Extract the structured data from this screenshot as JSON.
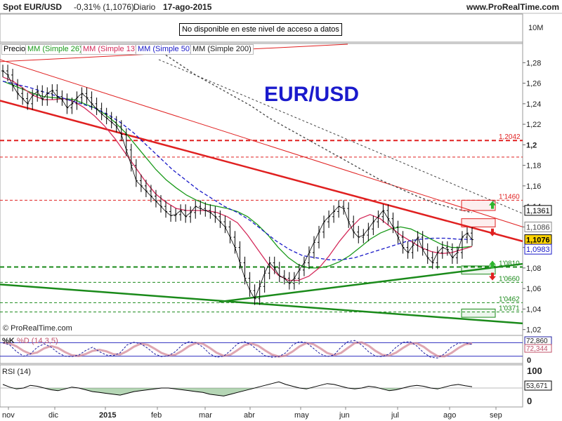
{
  "header": {
    "symbol": "Spot EUR/USD",
    "change": "-0,31% (1,1076)",
    "period": "Diario",
    "date": "17-ago-2015",
    "site": "www.ProRealTime.com"
  },
  "notice": "No disponible en este nivel de acceso a datos",
  "legend": {
    "price": "Precio",
    "mm26": "MM (Simple 26)",
    "mm13": "MM (Simple 13)",
    "mm50": "MM (Simple 50)",
    "mm200": "MM (Simple 200)"
  },
  "attribution": "© ProRealTime.com",
  "colors": {
    "mm26": "#1a9a1a",
    "mm13": "#d42a5a",
    "mm50": "#1a1ac8",
    "mm200": "#444444",
    "trend_red": "#e02020",
    "trend_green": "#1a8a1a",
    "price": "#000000",
    "tag_current": "#ffd400"
  },
  "chart_data": {
    "type": "line",
    "title": "EUR/USD",
    "volume_label": "10M",
    "y_ticks": [
      "1,28",
      "1,26",
      "1,24",
      "1,22",
      "1,2",
      "1,18",
      "1,16",
      "1,14",
      "1,12",
      "1,1",
      "1,08",
      "1,06",
      "1,04",
      "1,02"
    ],
    "ylim": [
      1.015,
      1.298
    ],
    "x_labels": [
      "nov",
      "dic",
      "2015",
      "feb",
      "mar",
      "abr",
      "may",
      "jun",
      "jul",
      "ago",
      "sep"
    ],
    "price_close": [
      1.272,
      1.268,
      1.258,
      1.25,
      1.245,
      1.24,
      1.248,
      1.252,
      1.244,
      1.25,
      1.253,
      1.247,
      1.244,
      1.236,
      1.24,
      1.246,
      1.25,
      1.246,
      1.24,
      1.235,
      1.23,
      1.226,
      1.222,
      1.218,
      1.21,
      1.195,
      1.18,
      1.165,
      1.16,
      1.155,
      1.15,
      1.145,
      1.14,
      1.135,
      1.131,
      1.132,
      1.136,
      1.13,
      1.134,
      1.14,
      1.138,
      1.136,
      1.134,
      1.13,
      1.125,
      1.12,
      1.11,
      1.1,
      1.085,
      1.07,
      1.058,
      1.05,
      1.062,
      1.075,
      1.085,
      1.08,
      1.072,
      1.07,
      1.065,
      1.07,
      1.078,
      1.085,
      1.095,
      1.105,
      1.115,
      1.125,
      1.13,
      1.135,
      1.14,
      1.138,
      1.125,
      1.115,
      1.11,
      1.112,
      1.118,
      1.125,
      1.13,
      1.136,
      1.128,
      1.12,
      1.11,
      1.1,
      1.095,
      1.102,
      1.11,
      1.098,
      1.09,
      1.085,
      1.095,
      1.1,
      1.098,
      1.09,
      1.095,
      1.11,
      1.114,
      1.1076
    ],
    "price_high_max": 1.144,
    "price_low_min": 1.046,
    "moving_averages": [
      {
        "name": "MM (Simple 26)",
        "values": [
          1.262,
          1.258,
          1.254,
          1.25,
          1.247,
          1.246,
          1.245,
          1.244,
          1.24,
          1.236,
          1.23,
          1.222,
          1.212,
          1.2,
          1.188,
          1.176,
          1.166,
          1.158,
          1.151,
          1.146,
          1.142,
          1.14,
          1.138,
          1.135,
          1.13,
          1.122,
          1.112,
          1.1,
          1.09,
          1.083,
          1.08,
          1.08,
          1.082,
          1.086,
          1.092,
          1.1,
          1.108,
          1.114,
          1.118,
          1.12,
          1.118,
          1.113,
          1.108,
          1.103,
          1.1,
          1.1,
          1.101
        ]
      },
      {
        "name": "MM (Simple 13)",
        "values": [
          1.266,
          1.262,
          1.255,
          1.248,
          1.244,
          1.244,
          1.245,
          1.242,
          1.236,
          1.228,
          1.218,
          1.206,
          1.192,
          1.178,
          1.164,
          1.152,
          1.144,
          1.138,
          1.136,
          1.136,
          1.136,
          1.134,
          1.13,
          1.124,
          1.112,
          1.098,
          1.084,
          1.073,
          1.068,
          1.068,
          1.072,
          1.08,
          1.092,
          1.106,
          1.118,
          1.128,
          1.132,
          1.128,
          1.12,
          1.112,
          1.106,
          1.1,
          1.096,
          1.094,
          1.095,
          1.098,
          1.101
        ]
      },
      {
        "name": "MM (Simple 50)",
        "values": [
          1.262,
          1.259,
          1.256,
          1.252,
          1.248,
          1.244,
          1.24,
          1.236,
          1.23,
          1.222,
          1.212,
          1.2,
          1.188,
          1.176,
          1.166,
          1.156,
          1.148,
          1.14,
          1.134,
          1.126,
          1.116,
          1.106,
          1.098,
          1.092,
          1.09,
          1.088,
          1.088,
          1.09,
          1.094,
          1.098,
          1.102,
          1.106,
          1.108,
          1.109,
          1.109,
          1.108,
          1.108
        ]
      },
      {
        "name": "MM (Simple 200)",
        "values": [
          1.292,
          1.28,
          1.268,
          1.258,
          1.248,
          1.238,
          1.226,
          1.216,
          1.206,
          1.196,
          1.186,
          1.176,
          1.166,
          1.158,
          1.15,
          1.143,
          1.138,
          1.134
        ]
      }
    ],
    "horizontal_levels": [
      {
        "label": "1,2042",
        "value": 1.2042,
        "style": "dashed-thick",
        "color": "#e02020"
      },
      {
        "label": "",
        "value": 1.188,
        "style": "dashed",
        "color": "#e02020"
      },
      {
        "label": "1'1460",
        "value": 1.146,
        "style": "dashed",
        "color": "#e02020"
      },
      {
        "label": "1'0810",
        "value": 1.081,
        "style": "dashed-thick",
        "color": "#1a8a1a"
      },
      {
        "label": "1'0660",
        "value": 1.066,
        "style": "dashed",
        "color": "#1a8a1a"
      },
      {
        "label": "1'0462",
        "value": 1.0462,
        "style": "dashed",
        "color": "#1a8a1a"
      },
      {
        "label": "1'0371",
        "value": 1.0371,
        "style": "dashed",
        "color": "#1a8a1a"
      }
    ],
    "price_tags": [
      {
        "label": "1,1361",
        "value": 1.1361,
        "bg": "#ffffff",
        "fg": "#000000",
        "border": "#000000"
      },
      {
        "label": "1,1086",
        "value": 1.12,
        "bg": "#ffffff",
        "fg": "#444444",
        "border": "#888888"
      },
      {
        "label": "1,1076",
        "value": 1.1076,
        "bg": "#ffd400",
        "fg": "#000000",
        "border": "#000000"
      },
      {
        "label": "1,0983",
        "value": 1.0983,
        "bg": "#ffffff",
        "fg": "#1a1ac8",
        "border": "#1a1ac8"
      }
    ],
    "stochastic": {
      "label_k": "%K",
      "label_d": "%D (14,3,5)",
      "value_k": "72,860",
      "value_d": "72,344",
      "ticks": [
        "100",
        "0"
      ],
      "values": [
        80,
        70,
        40,
        20,
        30,
        60,
        75,
        60,
        35,
        20,
        18,
        25,
        45,
        60,
        40,
        25,
        22,
        35,
        70,
        82,
        75,
        55,
        30,
        18,
        22,
        40,
        70,
        85,
        80,
        60,
        30,
        15,
        20,
        45,
        75,
        85,
        70,
        45,
        22,
        15,
        18,
        35,
        70,
        85,
        80,
        55,
        30,
        18,
        25,
        60,
        85,
        90,
        70,
        40,
        20,
        18,
        30,
        60,
        82,
        85,
        65,
        35,
        15,
        12,
        30,
        60,
        78,
        80,
        72
      ]
    },
    "rsi": {
      "label": "RSI (14)",
      "value": "53,671",
      "ticks": [
        "100",
        "0"
      ],
      "values": [
        58,
        52,
        48,
        50,
        56,
        54,
        50,
        46,
        44,
        48,
        52,
        50,
        46,
        42,
        40,
        38,
        36,
        34,
        38,
        42,
        44,
        46,
        48,
        50,
        50,
        48,
        46,
        44,
        42,
        40,
        36,
        34,
        32,
        36,
        40,
        44,
        48,
        52,
        56,
        60,
        64,
        58,
        54,
        50,
        48,
        52,
        56,
        60,
        58,
        54,
        50,
        48,
        50,
        54,
        52,
        48,
        44,
        46,
        50,
        54,
        56,
        54,
        50,
        48,
        52,
        56,
        58,
        55,
        53
      ]
    }
  }
}
